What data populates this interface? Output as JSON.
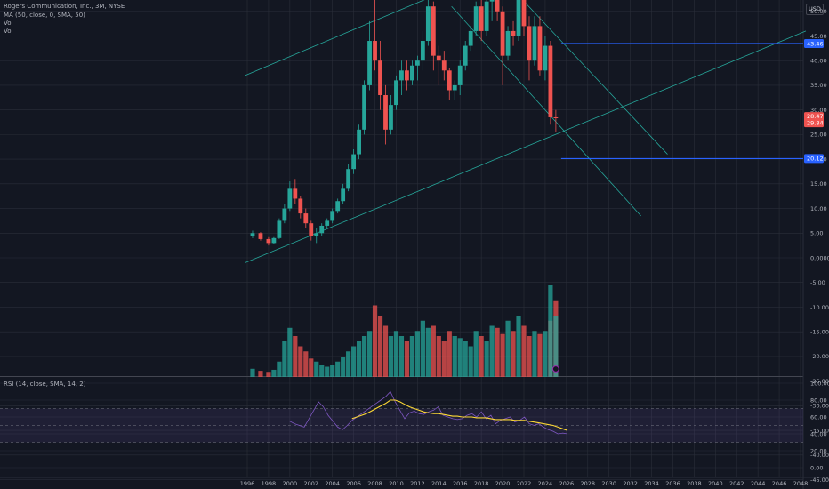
{
  "header": {
    "symbol_line": "Rogers Communication, Inc., 3M, NYSE",
    "ma_line": "MA (50, close, 0, SMA, 50)",
    "vol1": "Vol",
    "vol2": "Vol",
    "currency": "USD"
  },
  "rsi_panel": {
    "label": "RSI (14, close, SMA, 14, 2)"
  },
  "colors": {
    "up": "#26a69a",
    "down": "#ef5350",
    "trend": "#26a69a",
    "level": "#2962ff",
    "rsi": "#7e57c2",
    "rsi_ma": "#fdd835",
    "bg": "#131722",
    "grid": "#2a2e39"
  },
  "chart_data": [
    {
      "type": "candlestick",
      "title": "Rogers Communication, Inc., 3M, NYSE",
      "x_ticks": [
        "1996",
        "1998",
        "2000",
        "2002",
        "2004",
        "2006",
        "2008",
        "2010",
        "2012",
        "2014",
        "2016",
        "2018",
        "2020",
        "2022",
        "2024",
        "2026",
        "2028",
        "2030",
        "2032",
        "2034",
        "2036",
        "2038",
        "2040",
        "2042",
        "2044",
        "2046",
        "2048"
      ],
      "y_ticks": [
        "100.00",
        "95.00",
        "90.00",
        "85.00",
        "80.00",
        "75.00",
        "70.00",
        "65.00",
        "60.00",
        "55.00",
        "50.00",
        "45.00",
        "40.00",
        "35.00",
        "30.00",
        "25.00",
        "20.00",
        "15.00",
        "10.00",
        "5.00",
        "0.0000",
        "-5.00",
        "-10.00",
        "-15.00",
        "-20.00",
        "-25.00",
        "-30.00",
        "-35.00",
        "-40.00",
        "-45.00"
      ],
      "price_labels": {
        "current": "28.47",
        "countdown": "29.84",
        "upper_level": "43.46",
        "lower_level": "20.12"
      },
      "levels": [
        {
          "value": 43.46,
          "from": 2025.5
        },
        {
          "value": 20.12,
          "from": 2025.5
        }
      ],
      "trendlines": [
        {
          "from": [
            1995.8,
            37
          ],
          "to": [
            2048.5,
            85
          ]
        },
        {
          "from": [
            1995.8,
            -1
          ],
          "to": [
            2048.5,
            46
          ]
        },
        {
          "from": [
            2016.8,
            64
          ],
          "to": [
            2035.5,
            21
          ]
        },
        {
          "from": [
            2015.2,
            51
          ],
          "to": [
            2033.0,
            8.5
          ]
        }
      ],
      "ohlc": [
        {
          "t": 1996.5,
          "o": 4.5,
          "h": 5.5,
          "l": 4,
          "c": 5
        },
        {
          "t": 1997.25,
          "o": 5,
          "h": 5.2,
          "l": 3.5,
          "c": 3.8
        },
        {
          "t": 1998.0,
          "o": 3.8,
          "h": 4.2,
          "l": 2.5,
          "c": 3
        },
        {
          "t": 1998.5,
          "o": 3,
          "h": 4.2,
          "l": 2.8,
          "c": 4
        },
        {
          "t": 1999.0,
          "o": 4,
          "h": 8,
          "l": 3.8,
          "c": 7.5
        },
        {
          "t": 1999.5,
          "o": 7.5,
          "h": 11,
          "l": 7,
          "c": 10
        },
        {
          "t": 2000.0,
          "o": 10,
          "h": 15.5,
          "l": 9.5,
          "c": 14
        },
        {
          "t": 2000.5,
          "o": 14,
          "h": 16,
          "l": 11,
          "c": 12
        },
        {
          "t": 2001.0,
          "o": 12,
          "h": 12.5,
          "l": 8,
          "c": 9
        },
        {
          "t": 2001.5,
          "o": 9,
          "h": 10,
          "l": 6,
          "c": 7
        },
        {
          "t": 2002.0,
          "o": 7,
          "h": 7.5,
          "l": 3.5,
          "c": 4.5
        },
        {
          "t": 2002.5,
          "o": 4.5,
          "h": 6,
          "l": 3,
          "c": 5
        },
        {
          "t": 2003.0,
          "o": 5,
          "h": 7,
          "l": 4.5,
          "c": 6.5
        },
        {
          "t": 2003.5,
          "o": 6.5,
          "h": 8,
          "l": 6,
          "c": 7.5
        },
        {
          "t": 2004.0,
          "o": 7.5,
          "h": 10,
          "l": 7,
          "c": 9.5
        },
        {
          "t": 2004.5,
          "o": 9.5,
          "h": 12,
          "l": 9,
          "c": 11.5
        },
        {
          "t": 2005.0,
          "o": 11.5,
          "h": 15,
          "l": 11,
          "c": 14
        },
        {
          "t": 2005.5,
          "o": 14,
          "h": 19,
          "l": 13.5,
          "c": 18
        },
        {
          "t": 2006.0,
          "o": 18,
          "h": 22,
          "l": 17,
          "c": 21
        },
        {
          "t": 2006.5,
          "o": 21,
          "h": 27,
          "l": 20,
          "c": 26
        },
        {
          "t": 2007.0,
          "o": 26,
          "h": 36,
          "l": 25,
          "c": 35
        },
        {
          "t": 2007.5,
          "o": 35,
          "h": 48,
          "l": 34,
          "c": 44
        },
        {
          "t": 2008.0,
          "o": 44,
          "h": 54,
          "l": 38,
          "c": 40
        },
        {
          "t": 2008.5,
          "o": 40,
          "h": 44,
          "l": 30,
          "c": 33
        },
        {
          "t": 2009.0,
          "o": 33,
          "h": 35,
          "l": 23,
          "c": 26
        },
        {
          "t": 2009.5,
          "o": 26,
          "h": 33,
          "l": 25,
          "c": 31
        },
        {
          "t": 2010.0,
          "o": 31,
          "h": 37,
          "l": 30,
          "c": 36
        },
        {
          "t": 2010.5,
          "o": 36,
          "h": 40,
          "l": 33,
          "c": 38
        },
        {
          "t": 2011.0,
          "o": 38,
          "h": 40,
          "l": 34,
          "c": 36
        },
        {
          "t": 2011.5,
          "o": 36,
          "h": 40,
          "l": 35,
          "c": 39
        },
        {
          "t": 2012.0,
          "o": 39,
          "h": 41,
          "l": 36,
          "c": 40
        },
        {
          "t": 2012.5,
          "o": 40,
          "h": 46,
          "l": 38,
          "c": 44
        },
        {
          "t": 2013.0,
          "o": 44,
          "h": 53,
          "l": 43,
          "c": 51
        },
        {
          "t": 2013.5,
          "o": 51,
          "h": 52,
          "l": 38,
          "c": 41
        },
        {
          "t": 2014.0,
          "o": 41,
          "h": 43,
          "l": 35,
          "c": 40
        },
        {
          "t": 2014.5,
          "o": 40,
          "h": 42,
          "l": 36,
          "c": 38
        },
        {
          "t": 2015.0,
          "o": 38,
          "h": 38.5,
          "l": 32,
          "c": 34
        },
        {
          "t": 2015.5,
          "o": 34,
          "h": 36,
          "l": 32,
          "c": 35
        },
        {
          "t": 2016.0,
          "o": 35,
          "h": 40,
          "l": 33,
          "c": 39
        },
        {
          "t": 2016.5,
          "o": 39,
          "h": 44,
          "l": 38,
          "c": 43
        },
        {
          "t": 2017.0,
          "o": 43,
          "h": 47,
          "l": 42,
          "c": 46
        },
        {
          "t": 2017.5,
          "o": 46,
          "h": 52,
          "l": 45,
          "c": 51
        },
        {
          "t": 2018.0,
          "o": 51,
          "h": 53,
          "l": 44,
          "c": 46
        },
        {
          "t": 2018.5,
          "o": 46,
          "h": 54,
          "l": 45,
          "c": 52
        },
        {
          "t": 2019.0,
          "o": 52,
          "h": 56,
          "l": 48,
          "c": 53
        },
        {
          "t": 2019.5,
          "o": 53,
          "h": 55,
          "l": 48,
          "c": 50
        },
        {
          "t": 2020.0,
          "o": 50,
          "h": 51,
          "l": 35,
          "c": 41
        },
        {
          "t": 2020.5,
          "o": 41,
          "h": 47,
          "l": 40,
          "c": 46
        },
        {
          "t": 2021.0,
          "o": 46,
          "h": 48,
          "l": 43,
          "c": 45
        },
        {
          "t": 2021.5,
          "o": 45,
          "h": 56,
          "l": 44,
          "c": 55
        },
        {
          "t": 2022.0,
          "o": 55,
          "h": 65,
          "l": 45,
          "c": 47
        },
        {
          "t": 2022.5,
          "o": 47,
          "h": 49,
          "l": 36,
          "c": 40
        },
        {
          "t": 2023.0,
          "o": 40,
          "h": 49,
          "l": 39,
          "c": 47
        },
        {
          "t": 2023.5,
          "o": 47,
          "h": 49,
          "l": 37,
          "c": 38
        },
        {
          "t": 2024.0,
          "o": 38,
          "h": 45,
          "l": 36,
          "c": 43
        },
        {
          "t": 2024.5,
          "o": 43,
          "h": 44,
          "l": 27,
          "c": 28.5
        },
        {
          "t": 2025.0,
          "o": 28.5,
          "h": 30,
          "l": 25.5,
          "c": 28.47
        }
      ]
    },
    {
      "type": "bar",
      "title": "Vol",
      "values": [
        8,
        6,
        5,
        7,
        15,
        35,
        48,
        40,
        30,
        25,
        18,
        15,
        12,
        10,
        12,
        15,
        20,
        25,
        30,
        35,
        40,
        45,
        70,
        60,
        50,
        40,
        45,
        40,
        35,
        40,
        45,
        55,
        48,
        50,
        40,
        35,
        45,
        40,
        38,
        35,
        30,
        45,
        40,
        35,
        50,
        48,
        42,
        55,
        45,
        60,
        50,
        40,
        45,
        42,
        45,
        55,
        75,
        90,
        60
      ]
    },
    {
      "type": "line",
      "title": "RSI (14, close, SMA, 14, 2)",
      "y_ticks": [
        "100.00",
        "80.00",
        "60.00",
        "40.00",
        "20.00",
        "0.00"
      ],
      "bands": {
        "upper": 70,
        "mid": 50,
        "lower": 30
      },
      "rsi": [
        55,
        52,
        50,
        48,
        58,
        68,
        78,
        72,
        62,
        55,
        48,
        45,
        50,
        56,
        60,
        64,
        68,
        72,
        76,
        80,
        84,
        90,
        78,
        68,
        58,
        65,
        67,
        64,
        63,
        66,
        68,
        72,
        62,
        60,
        58,
        57,
        58,
        62,
        64,
        60,
        66,
        58,
        62,
        52,
        56,
        58,
        60,
        54,
        56,
        60,
        52,
        50,
        52,
        48,
        45,
        43,
        40,
        41,
        40
      ],
      "rsi_ma": [
        null,
        null,
        null,
        null,
        null,
        null,
        null,
        null,
        null,
        null,
        null,
        null,
        null,
        58,
        60,
        62,
        64,
        67,
        70,
        73,
        76,
        80,
        80,
        78,
        75,
        72,
        70,
        68,
        66,
        65,
        64,
        64,
        63,
        62,
        61,
        61,
        60,
        60,
        60,
        59,
        59,
        59,
        58,
        57,
        57,
        57,
        57,
        56,
        56,
        56,
        55,
        54,
        53,
        52,
        51,
        50,
        48,
        46,
        44
      ]
    }
  ]
}
